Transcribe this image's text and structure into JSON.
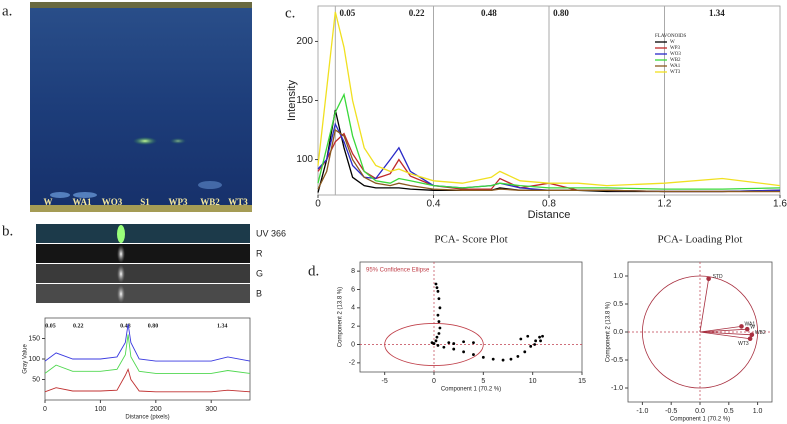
{
  "panels": {
    "a": "a.",
    "b": "b.",
    "c": "c.",
    "d": "d."
  },
  "plate": {
    "lanes": [
      "W",
      "WA1",
      "WO3",
      "S1",
      "WP3",
      "WB2",
      "WT3"
    ]
  },
  "strips": {
    "labels": [
      "UV 366",
      "R",
      "G",
      "B"
    ]
  },
  "chart_data": [
    {
      "type": "line",
      "ylabel": "Intensity",
      "xlabel": "Distance",
      "xlim": [
        0,
        1.6
      ],
      "xticks": [
        0,
        0.4,
        0.8,
        1.2,
        1.6
      ],
      "ylim": [
        70,
        230
      ],
      "yticks": [
        100,
        150,
        200
      ],
      "rf_markers": [
        {
          "label": "0.05",
          "x": 0.06
        },
        {
          "label": "0.22",
          "x": 0.3
        },
        {
          "label": "0.48",
          "x": 0.55
        },
        {
          "label": "0.80",
          "x": 0.8
        },
        {
          "label": "1.34",
          "x": 1.34
        }
      ],
      "marker_lines": [
        0.06,
        0.4,
        0.8,
        1.2
      ],
      "legend_title": "FLAVONOIDS",
      "legend": "upper right",
      "x": [
        0,
        0.03,
        0.06,
        0.09,
        0.12,
        0.16,
        0.2,
        0.25,
        0.28,
        0.32,
        0.4,
        0.5,
        0.6,
        0.63,
        0.7,
        0.8,
        0.9,
        1.0,
        1.2,
        1.4,
        1.6
      ],
      "series": [
        {
          "name": "W",
          "color": "#000000",
          "values": [
            72,
            100,
            142,
            110,
            85,
            78,
            76,
            76,
            76,
            75,
            74,
            74,
            74,
            76,
            74,
            74,
            74,
            73,
            73,
            73,
            74
          ]
        },
        {
          "name": "WP3",
          "color": "#c0282a",
          "values": [
            90,
            100,
            115,
            122,
            105,
            90,
            84,
            88,
            100,
            86,
            78,
            75,
            75,
            84,
            76,
            80,
            74,
            74,
            73,
            73,
            73
          ]
        },
        {
          "name": "WO3",
          "color": "#2a2ac8",
          "values": [
            92,
            100,
            130,
            115,
            95,
            85,
            84,
            100,
            110,
            90,
            78,
            76,
            78,
            80,
            76,
            74,
            74,
            74,
            73,
            73,
            74
          ]
        },
        {
          "name": "WB2",
          "color": "#3ad83a",
          "values": [
            80,
            110,
            140,
            155,
            120,
            90,
            82,
            80,
            84,
            82,
            78,
            76,
            78,
            80,
            78,
            76,
            76,
            76,
            75,
            75,
            76
          ]
        },
        {
          "name": "WA1",
          "color": "#8a5a20",
          "values": [
            75,
            90,
            125,
            120,
            100,
            85,
            80,
            78,
            80,
            78,
            75,
            74,
            74,
            75,
            74,
            74,
            74,
            74,
            73,
            73,
            73
          ]
        },
        {
          "name": "WT3",
          "color": "#f0e020",
          "values": [
            95,
            160,
            225,
            195,
            150,
            110,
            95,
            90,
            92,
            88,
            82,
            80,
            85,
            90,
            82,
            80,
            80,
            78,
            80,
            84,
            78
          ]
        }
      ]
    },
    {
      "type": "line",
      "ylabel": "Gray Value",
      "xlabel": "Distance (pixels)",
      "xlim": [
        0,
        370
      ],
      "xticks": [
        0,
        100,
        200,
        300
      ],
      "ylim": [
        0,
        200
      ],
      "yticks": [
        50,
        100,
        150
      ],
      "rf_markers": [
        {
          "label": "0.05",
          "x": 10
        },
        {
          "label": "0.22",
          "x": 60
        },
        {
          "label": "0.48",
          "x": 145
        },
        {
          "label": "0.80",
          "x": 195
        },
        {
          "label": "1.34",
          "x": 320
        }
      ],
      "x": [
        0,
        20,
        50,
        100,
        130,
        145,
        150,
        155,
        170,
        200,
        250,
        300,
        330,
        370
      ],
      "series": [
        {
          "color": "#3a3ae0",
          "values": [
            95,
            115,
            100,
            100,
            105,
            140,
            185,
            140,
            100,
            95,
            95,
            95,
            105,
            95
          ]
        },
        {
          "color": "#50d850",
          "values": [
            65,
            85,
            70,
            70,
            75,
            110,
            160,
            105,
            70,
            65,
            65,
            65,
            72,
            65
          ]
        },
        {
          "color": "#c03030",
          "values": [
            20,
            30,
            22,
            22,
            24,
            60,
            75,
            50,
            22,
            20,
            20,
            20,
            24,
            20
          ]
        }
      ]
    },
    {
      "type": "scatter",
      "title": "PCA- Score Plot",
      "xlabel": "Component 1 (70.2 %)",
      "ylabel": "Component 2 (13.8 %)",
      "xlim": [
        -7.5,
        15
      ],
      "xticks": [
        -5,
        0,
        5,
        10,
        15
      ],
      "ylim": [
        -3,
        9
      ],
      "yticks": [
        -2,
        0,
        2,
        4,
        6,
        8
      ],
      "ellipse": {
        "label": "95% Confidence Ellipse",
        "cx": 0,
        "cy": 0,
        "rx": 5,
        "ry": 2.3,
        "color": "#c0404a"
      },
      "series": [
        {
          "color": "#000000",
          "x": [
            0.2,
            0.3,
            0.4,
            0.5,
            0.6,
            0.4,
            0.5,
            0.6,
            0.5,
            0.3,
            0.2,
            -0.2,
            0.0,
            0.4,
            1,
            2,
            3,
            4,
            5,
            6,
            7,
            7.8,
            8.5,
            9.2,
            9.8,
            10.3,
            10.7,
            11,
            10.8,
            10.2,
            9.5,
            8.8,
            4,
            3,
            2,
            1.5
          ],
          "values": [
            6.6,
            6.2,
            5.8,
            5,
            4,
            3.2,
            2.5,
            1.8,
            1.2,
            0.8,
            0.4,
            0.2,
            0.1,
            -0.1,
            -0.3,
            -0.5,
            -0.8,
            -1.1,
            -1.4,
            -1.6,
            -1.7,
            -1.6,
            -1.3,
            -0.8,
            -0.2,
            0.4,
            0.8,
            0.9,
            0.4,
            0.0,
            0.9,
            0.6,
            0.2,
            0.3,
            0.1,
            0.2
          ]
        }
      ]
    },
    {
      "type": "loading",
      "title": "PCA- Loading Plot",
      "xlabel": "Component 1 (70.2 %)",
      "ylabel": "Component 2 (13.8 %)",
      "xlim": [
        -1.25,
        1.25
      ],
      "xticks": [
        {
          "value": -1,
          "label": "-1.0"
        },
        -0.5,
        {
          "value": 0,
          "label": "0.0"
        },
        0.5,
        {
          "value": 1,
          "label": "1.0"
        }
      ],
      "ylim": [
        -1.25,
        1.25
      ],
      "yticks": [
        {
          "value": -1,
          "label": "-1.0"
        },
        -0.5,
        {
          "value": 0,
          "label": "0.0"
        },
        0.5,
        {
          "value": 1,
          "label": "1.0"
        }
      ],
      "circle_radius": 1,
      "color": "#a83040",
      "labels": [
        "STD",
        "WA1",
        "W",
        "WB2",
        "WT3"
      ],
      "x": [
        0.15,
        0.72,
        0.82,
        0.9,
        0.87
      ],
      "values": [
        0.95,
        0.1,
        0.05,
        -0.05,
        -0.12
      ]
    }
  ]
}
